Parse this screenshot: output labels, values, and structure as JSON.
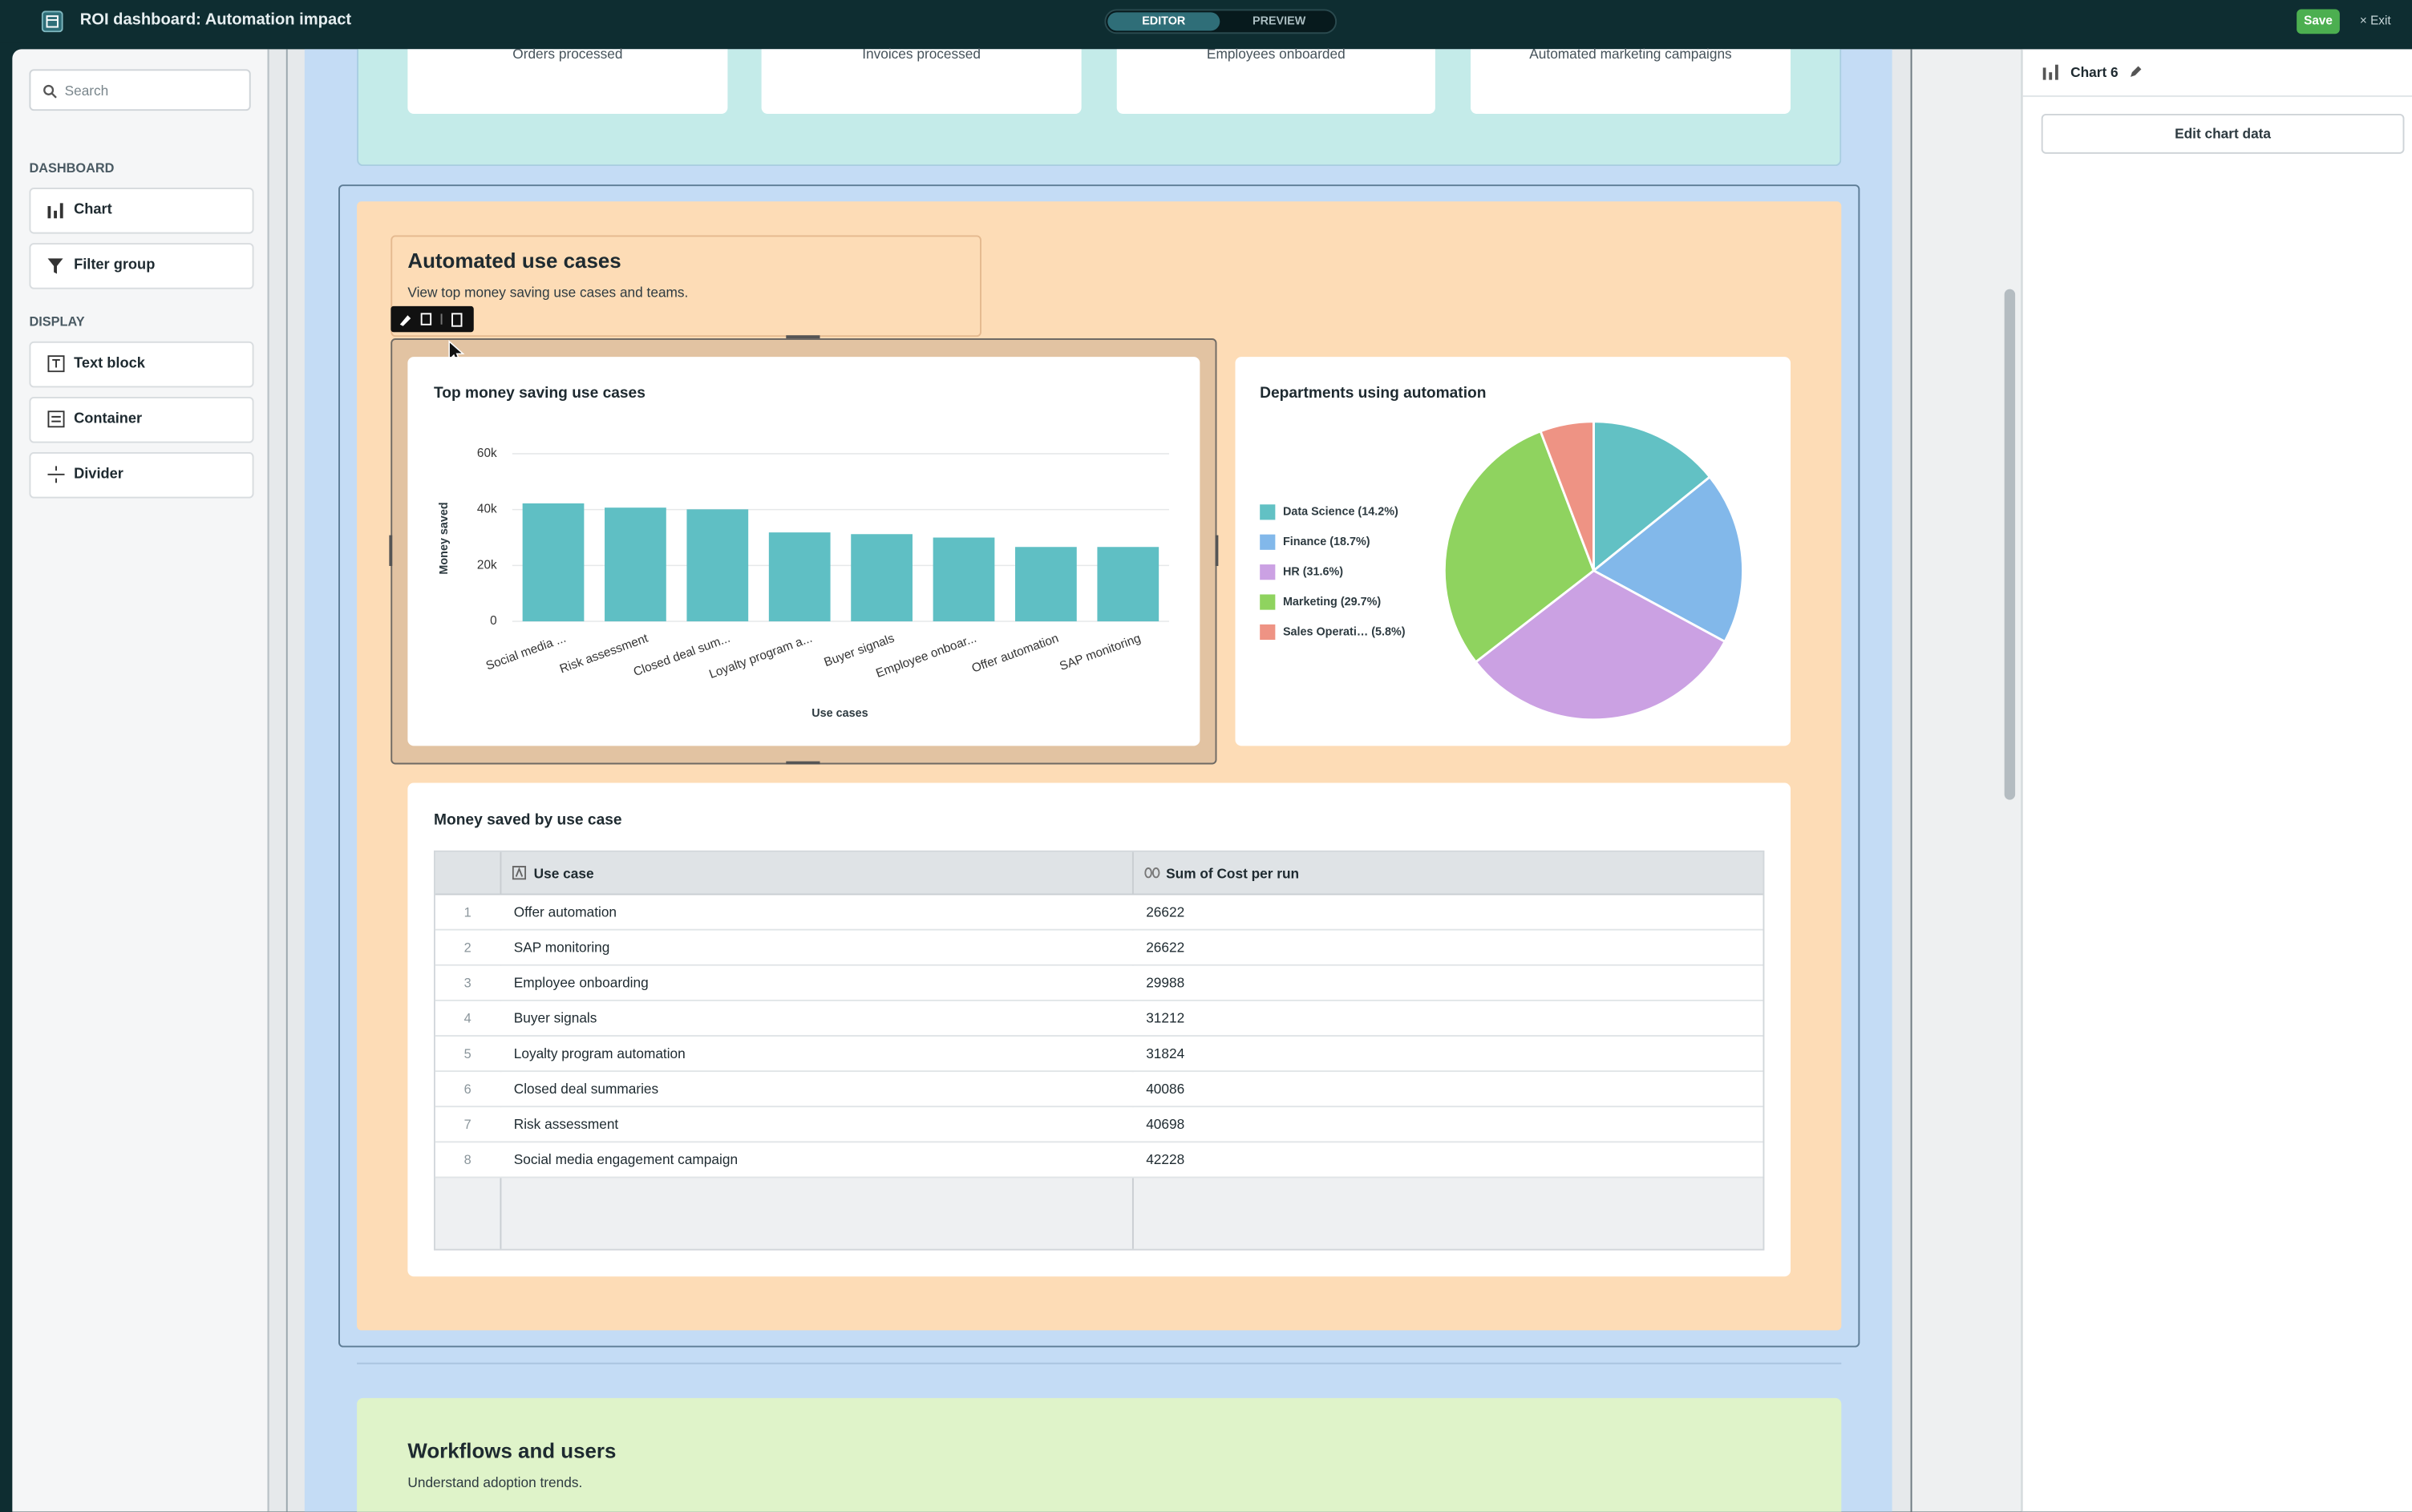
{
  "header": {
    "title": "ROI dashboard: Automation impact",
    "tabs": [
      "EDITOR",
      "PREVIEW"
    ],
    "save": "Save",
    "exit": "Exit"
  },
  "sidebar": {
    "search": "Search",
    "sections": [
      {
        "title": "DASHBOARD",
        "items": [
          "Chart",
          "Filter group"
        ]
      },
      {
        "title": "DISPLAY",
        "items": [
          "Text block",
          "Container",
          "Divider"
        ]
      }
    ]
  },
  "top_cards": [
    "Orders processed",
    "Invoices processed",
    "Employees onboarded",
    "Automated marketing campaigns"
  ],
  "section": {
    "title": "Automated use cases",
    "subtitle": "View top money saving use cases and teams."
  },
  "chart_data": [
    {
      "type": "bar",
      "title": "Top money saving use cases",
      "x_label": "Use cases",
      "y_label": "Money saved",
      "categories": [
        "Social media ...",
        "Risk assessment",
        "Closed deal sum...",
        "Loyalty program a...",
        "Buyer signals",
        "Employee onboar...",
        "Offer automation",
        "SAP monitoring"
      ],
      "values": [
        42228,
        40698,
        40086,
        31824,
        31212,
        29988,
        26622,
        26622
      ],
      "color": "#5fbfc4",
      "ylim": [
        0,
        60000
      ],
      "yticks": [
        0,
        {
          "value": 20000,
          "label": "20k"
        },
        {
          "value": 40000,
          "label": "40k"
        },
        {
          "value": 60000,
          "label": "60k"
        }
      ],
      "grid": true
    },
    {
      "type": "pie",
      "title": "Departments using automation",
      "categories": [
        "Data Science (14.2%)",
        "Finance (18.7%)",
        "HR (31.6%)",
        "Marketing (29.7%)",
        "Sales Operati…  (5.8%)"
      ],
      "values": [
        14.2,
        18.7,
        31.6,
        29.7,
        5.8
      ],
      "colors": [
        "#62c1c4",
        "#82b8ea",
        "#cba1e3",
        "#8fd35f",
        "#ee9384"
      ]
    }
  ],
  "table": {
    "title": "Money saved by use case",
    "columns": [
      "Use case",
      "Sum of Cost per run"
    ],
    "rows": [
      [
        1,
        "Offer automation",
        26622
      ],
      [
        2,
        "SAP monitoring",
        26622
      ],
      [
        3,
        "Employee onboarding",
        29988
      ],
      [
        4,
        "Buyer signals",
        31212
      ],
      [
        5,
        "Loyalty program automation",
        31824
      ],
      [
        6,
        "Closed deal summaries",
        40086
      ],
      [
        7,
        "Risk assessment",
        40698
      ],
      [
        8,
        "Social media engagement campaign",
        42228
      ]
    ]
  },
  "workflows": {
    "title": "Workflows and users",
    "subtitle": "Understand adoption trends."
  },
  "panel": {
    "chart_name": "Chart 6",
    "button": "Edit chart data"
  }
}
